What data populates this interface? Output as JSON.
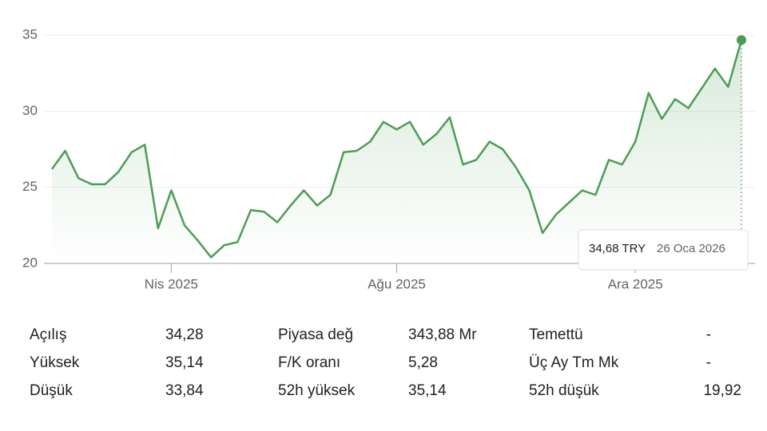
{
  "chart_data": {
    "type": "line",
    "categories": [
      null,
      null,
      null,
      null,
      null,
      null,
      null,
      null,
      null,
      "Nis 2025",
      null,
      null,
      null,
      null,
      null,
      null,
      null,
      null,
      null,
      null,
      null,
      null,
      null,
      null,
      null,
      null,
      "Ağu 2025",
      null,
      null,
      null,
      null,
      null,
      null,
      null,
      null,
      null,
      null,
      null,
      null,
      null,
      null,
      null,
      null,
      null,
      "Ara 2025",
      null,
      null,
      null,
      null,
      null,
      null,
      null,
      null
    ],
    "values": [
      26.2,
      27.4,
      25.6,
      25.2,
      25.2,
      26.0,
      27.3,
      27.8,
      22.3,
      24.8,
      22.5,
      21.5,
      20.4,
      21.2,
      21.4,
      23.5,
      23.4,
      22.7,
      23.8,
      24.8,
      23.8,
      24.5,
      27.3,
      27.4,
      28.0,
      29.3,
      28.8,
      29.3,
      27.8,
      28.5,
      29.6,
      26.5,
      26.8,
      28.0,
      27.5,
      26.3,
      24.8,
      22.0,
      23.2,
      24.0,
      24.8,
      24.5,
      26.8,
      26.5,
      28.0,
      31.2,
      29.5,
      30.8,
      30.2,
      31.5,
      32.8,
      31.6,
      34.68
    ],
    "color": "#4a9e54",
    "ylim": [
      20,
      35
    ],
    "yticks": [
      20,
      25,
      30,
      35
    ],
    "grid": true,
    "tooltip": {
      "label": "34,68 TRY",
      "date": "26 Oca 2026"
    }
  },
  "stats": {
    "columns": [
      [
        [
          "Açılış",
          "34,28"
        ],
        [
          "Yüksek",
          "35,14"
        ],
        [
          "Düşük",
          "33,84"
        ]
      ],
      [
        [
          "Piyasa değ",
          "343,88 Mr"
        ],
        [
          "F/K oranı",
          "5,28"
        ],
        [
          "52h yüksek",
          "35,14"
        ]
      ],
      [
        [
          "Temettü",
          "-"
        ],
        [
          "Üç Ay Tm Mk",
          "-"
        ],
        [
          "52h düşük",
          "19,92"
        ]
      ]
    ]
  }
}
